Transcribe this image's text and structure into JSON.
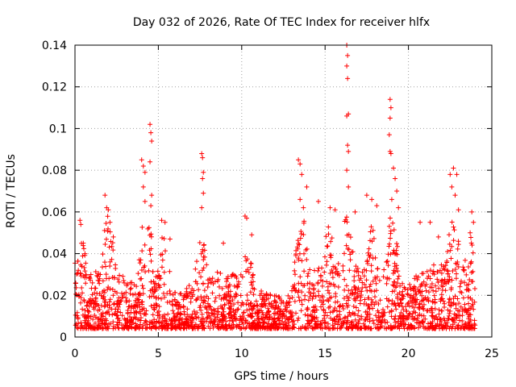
{
  "chart_data": {
    "type": "scatter",
    "title": "Day 032 of 2026, Rate Of TEC Index for receiver hlfx",
    "xlabel": "GPS time / hours",
    "ylabel": "ROTI / TECUs",
    "xlim": [
      0,
      25
    ],
    "ylim": [
      0,
      0.14
    ],
    "x_ticks": [
      "0",
      "5",
      "10",
      "15",
      "20",
      "25"
    ],
    "y_ticks": [
      "0",
      "0.02",
      "0.04",
      "0.06",
      "0.08",
      "0.1",
      "0.12",
      "0.14"
    ],
    "grid": true,
    "marker": "plus",
    "color": "#ff0000",
    "series": [
      {
        "name": "ROTI",
        "points": [
          [
            0.2,
            0.032
          ],
          [
            0.3,
            0.056
          ],
          [
            0.35,
            0.054
          ],
          [
            0.5,
            0.045
          ],
          [
            0.6,
            0.04
          ],
          [
            1.8,
            0.068
          ],
          [
            1.9,
            0.062
          ],
          [
            2.0,
            0.061
          ],
          [
            2.1,
            0.055
          ],
          [
            2.3,
            0.048
          ],
          [
            4.0,
            0.085
          ],
          [
            4.1,
            0.082
          ],
          [
            4.2,
            0.079
          ],
          [
            4.1,
            0.072
          ],
          [
            4.2,
            0.065
          ],
          [
            4.5,
            0.102
          ],
          [
            4.55,
            0.098
          ],
          [
            4.6,
            0.094
          ],
          [
            4.5,
            0.084
          ],
          [
            4.6,
            0.068
          ],
          [
            4.55,
            0.063
          ],
          [
            5.2,
            0.056
          ],
          [
            5.4,
            0.055
          ],
          [
            5.7,
            0.047
          ],
          [
            7.6,
            0.088
          ],
          [
            7.65,
            0.086
          ],
          [
            7.7,
            0.079
          ],
          [
            7.65,
            0.076
          ],
          [
            7.7,
            0.069
          ],
          [
            7.6,
            0.062
          ],
          [
            8.9,
            0.045
          ],
          [
            10.2,
            0.058
          ],
          [
            10.3,
            0.057
          ],
          [
            10.6,
            0.049
          ],
          [
            13.4,
            0.085
          ],
          [
            13.5,
            0.083
          ],
          [
            13.6,
            0.078
          ],
          [
            13.5,
            0.066
          ],
          [
            13.7,
            0.062
          ],
          [
            13.9,
            0.072
          ],
          [
            14.6,
            0.065
          ],
          [
            15.3,
            0.062
          ],
          [
            15.6,
            0.061
          ],
          [
            16.3,
            0.14
          ],
          [
            16.35,
            0.135
          ],
          [
            16.3,
            0.13
          ],
          [
            16.35,
            0.124
          ],
          [
            16.4,
            0.107
          ],
          [
            16.3,
            0.106
          ],
          [
            16.35,
            0.092
          ],
          [
            16.4,
            0.089
          ],
          [
            16.3,
            0.08
          ],
          [
            16.4,
            0.072
          ],
          [
            16.8,
            0.06
          ],
          [
            17.5,
            0.068
          ],
          [
            17.8,
            0.066
          ],
          [
            18.1,
            0.063
          ],
          [
            18.9,
            0.114
          ],
          [
            18.95,
            0.11
          ],
          [
            18.9,
            0.105
          ],
          [
            18.85,
            0.097
          ],
          [
            18.9,
            0.089
          ],
          [
            18.95,
            0.088
          ],
          [
            19.1,
            0.081
          ],
          [
            19.2,
            0.076
          ],
          [
            19.3,
            0.07
          ],
          [
            19.0,
            0.066
          ],
          [
            19.4,
            0.062
          ],
          [
            20.7,
            0.055
          ],
          [
            21.3,
            0.055
          ],
          [
            21.8,
            0.048
          ],
          [
            22.5,
            0.078
          ],
          [
            22.7,
            0.081
          ],
          [
            22.9,
            0.078
          ],
          [
            22.6,
            0.072
          ],
          [
            22.8,
            0.068
          ],
          [
            23.0,
            0.061
          ],
          [
            23.8,
            0.06
          ],
          [
            23.9,
            0.055
          ],
          [
            23.7,
            0.05
          ]
        ]
      }
    ]
  }
}
